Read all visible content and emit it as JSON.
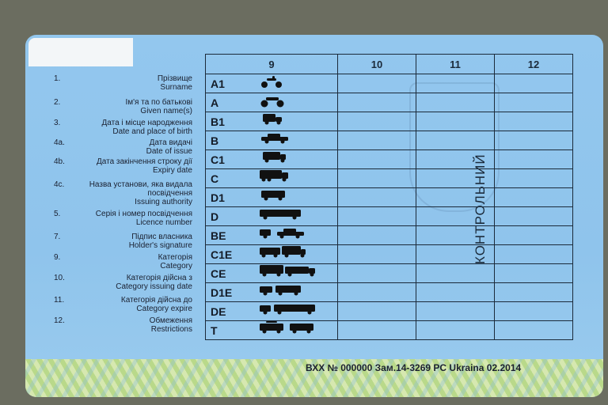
{
  "fields": [
    {
      "num": "1.",
      "ua": "Прізвище",
      "en": "Surname"
    },
    {
      "num": "2.",
      "ua": "Ім'я та по батькові",
      "en": "Given name(s)"
    },
    {
      "num": "3.",
      "ua": "Дата і місце народження",
      "en": "Date and place of birth"
    },
    {
      "num": "4a.",
      "ua": "Дата видачі",
      "en": "Date of issue"
    },
    {
      "num": "4b.",
      "ua": "Дата закінчення строку дії",
      "en": "Expiry date"
    },
    {
      "num": "4c.",
      "ua": "Назва установи, яка видала посвідчення",
      "en": "Issuing authority"
    },
    {
      "num": "5.",
      "ua": "Серія і номер посвідчення",
      "en": "Licence number"
    },
    {
      "num": "7.",
      "ua": "Підпис власника",
      "en": "Holder's signature"
    },
    {
      "num": "9.",
      "ua": "Категорія",
      "en": "Category"
    },
    {
      "num": "10.",
      "ua": "Категорія дійсна з",
      "en": "Category issuing date"
    },
    {
      "num": "11.",
      "ua": "Категорія дійсна до",
      "en": "Category expire"
    },
    {
      "num": "12.",
      "ua": "Обмеження",
      "en": "Restrictions"
    }
  ],
  "table": {
    "headers": [
      "9",
      "10",
      "11",
      "12"
    ],
    "rows": [
      {
        "code": "A1",
        "icon": "moped-icon"
      },
      {
        "code": "A",
        "icon": "motorcycle-icon"
      },
      {
        "code": "B1",
        "icon": "small-truck-icon"
      },
      {
        "code": "B",
        "icon": "car-icon"
      },
      {
        "code": "C1",
        "icon": "truck-icon"
      },
      {
        "code": "C",
        "icon": "heavy-truck-icon"
      },
      {
        "code": "D1",
        "icon": "minibus-icon"
      },
      {
        "code": "D",
        "icon": "bus-icon"
      },
      {
        "code": "BE",
        "icon": "car-trailer-icon"
      },
      {
        "code": "C1E",
        "icon": "truck-trailer-icon"
      },
      {
        "code": "CE",
        "icon": "heavy-truck-trailer-icon"
      },
      {
        "code": "D1E",
        "icon": "minibus-trailer-icon"
      },
      {
        "code": "DE",
        "icon": "bus-trailer-icon"
      },
      {
        "code": "T",
        "icon": "tram-trolleybus-icon"
      }
    ]
  },
  "control_mark": "КОНТРОЛЬНИЙ",
  "serial": "ВХХ № 000000  Зам.14-3269 PC Ukraina 02.2014"
}
